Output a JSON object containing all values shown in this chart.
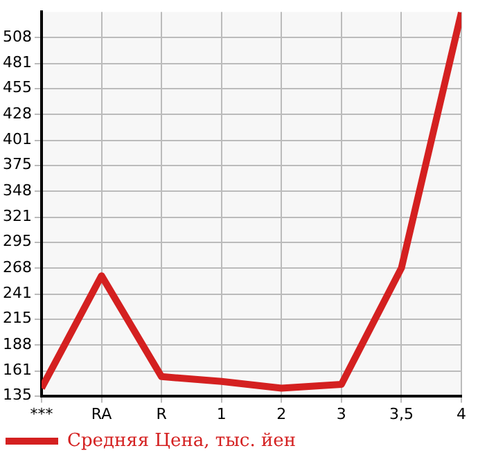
{
  "chart_data": {
    "type": "line",
    "categories": [
      "***",
      "RA",
      "R",
      "1",
      "2",
      "3",
      "3,5",
      "4"
    ],
    "series": [
      {
        "name": "Средняя Цена, тыс. йен",
        "color": "#d42020",
        "values": [
          143,
          260,
          155,
          150,
          143,
          147,
          268,
          534
        ]
      }
    ],
    "ylim": [
      135,
      534.6
    ],
    "yticks": [
      135,
      161,
      188,
      215,
      241,
      268,
      295,
      321,
      348,
      375,
      401,
      428,
      455,
      481,
      508
    ],
    "grid": true,
    "legend": "bottom left",
    "marker": "none",
    "line_style": "solid"
  }
}
